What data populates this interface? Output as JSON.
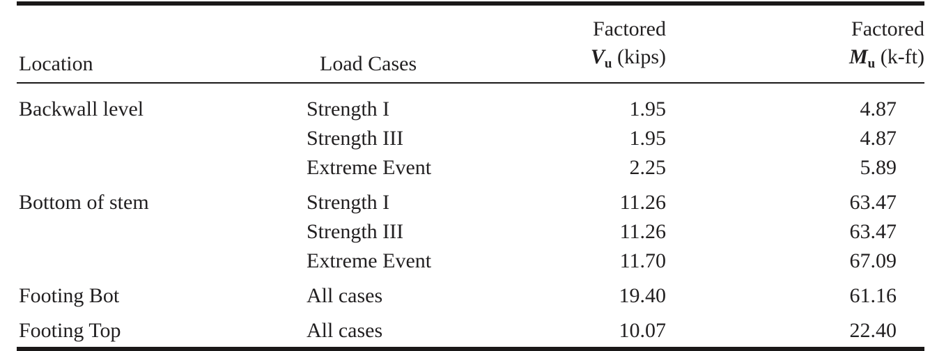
{
  "colors": {
    "text": "#211f20",
    "rule": "#1a1818",
    "background": "#ffffff"
  },
  "table": {
    "columns": [
      {
        "label": "Location"
      },
      {
        "label": "Load Cases"
      },
      {
        "line1": "Factored",
        "symbol": "V",
        "sub": "u",
        "unit": " (kips)"
      },
      {
        "line1": "Factored",
        "symbol": "M",
        "sub": "u",
        "unit": " (k-ft)"
      }
    ],
    "rows": [
      {
        "location": "Backwall level",
        "load_case": "Strength I",
        "vu": "1.95",
        "mu": "4.87"
      },
      {
        "location": "",
        "load_case": "Strength III",
        "vu": "1.95",
        "mu": "4.87"
      },
      {
        "location": "",
        "load_case": "Extreme Event",
        "vu": "2.25",
        "mu": "5.89"
      },
      {
        "location": "Bottom of stem",
        "load_case": "Strength I",
        "vu": "11.26",
        "mu": "63.47"
      },
      {
        "location": "",
        "load_case": "Strength III",
        "vu": "11.26",
        "mu": "63.47"
      },
      {
        "location": "",
        "load_case": "Extreme Event",
        "vu": "11.70",
        "mu": "67.09"
      },
      {
        "location": "Footing Bot",
        "load_case": "All cases",
        "vu": "19.40",
        "mu": "61.16"
      },
      {
        "location": "Footing Top",
        "load_case": "All cases",
        "vu": "10.07",
        "mu": "22.40"
      }
    ]
  }
}
